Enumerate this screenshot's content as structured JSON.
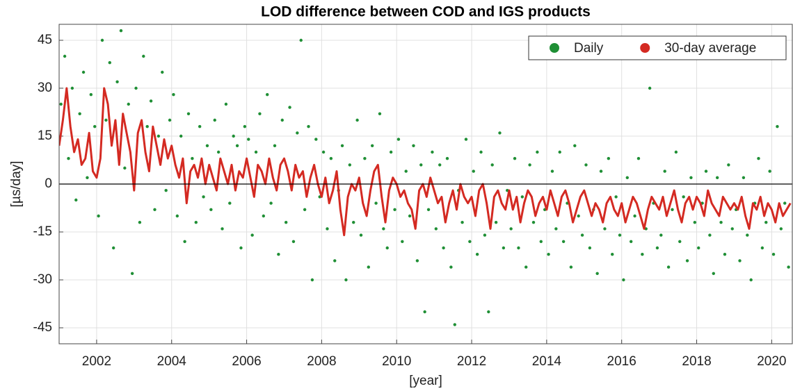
{
  "chart_data": {
    "type": "scatter",
    "title": "LOD difference between COD and IGS products",
    "x_label": "[year]",
    "y_label": "[µs/day]",
    "xlim": [
      2001,
      2020.55
    ],
    "xticks": [
      2002,
      2004,
      2006,
      2008,
      2010,
      2012,
      2014,
      2016,
      2018,
      2020
    ],
    "ylim": [
      -50,
      50
    ],
    "yticks": [
      -45,
      -30,
      -15,
      0,
      15,
      30,
      45
    ],
    "grid": true,
    "zero_line": true,
    "legend": "top-right",
    "series": [
      {
        "name": "Daily",
        "color": "#1f8f35",
        "style": "dots",
        "x": [
          2001.05,
          2001.15,
          2001.25,
          2001.35,
          2001.45,
          2001.55,
          2001.65,
          2001.75,
          2001.85,
          2001.95,
          2002.05,
          2002.15,
          2002.25,
          2002.35,
          2002.45,
          2002.55,
          2002.65,
          2002.75,
          2002.85,
          2002.95,
          2003.05,
          2003.15,
          2003.25,
          2003.35,
          2003.45,
          2003.55,
          2003.65,
          2003.75,
          2003.85,
          2003.95,
          2004.05,
          2004.15,
          2004.25,
          2004.35,
          2004.45,
          2004.55,
          2004.65,
          2004.75,
          2004.85,
          2004.95,
          2005.05,
          2005.15,
          2005.25,
          2005.35,
          2005.45,
          2005.55,
          2005.65,
          2005.75,
          2005.85,
          2005.95,
          2006.05,
          2006.15,
          2006.25,
          2006.35,
          2006.45,
          2006.55,
          2006.65,
          2006.75,
          2006.85,
          2006.95,
          2007.05,
          2007.15,
          2007.25,
          2007.35,
          2007.45,
          2007.55,
          2007.65,
          2007.75,
          2007.85,
          2007.95,
          2008.05,
          2008.15,
          2008.25,
          2008.35,
          2008.45,
          2008.55,
          2008.65,
          2008.75,
          2008.85,
          2008.95,
          2009.05,
          2009.15,
          2009.25,
          2009.35,
          2009.45,
          2009.55,
          2009.65,
          2009.75,
          2009.85,
          2009.95,
          2010.05,
          2010.15,
          2010.25,
          2010.35,
          2010.45,
          2010.55,
          2010.65,
          2010.75,
          2010.85,
          2010.95,
          2011.05,
          2011.15,
          2011.25,
          2011.35,
          2011.45,
          2011.55,
          2011.65,
          2011.75,
          2011.85,
          2011.95,
          2012.05,
          2012.15,
          2012.25,
          2012.35,
          2012.45,
          2012.55,
          2012.65,
          2012.75,
          2012.85,
          2012.95,
          2013.05,
          2013.15,
          2013.25,
          2013.35,
          2013.45,
          2013.55,
          2013.65,
          2013.75,
          2013.85,
          2013.95,
          2014.05,
          2014.15,
          2014.25,
          2014.35,
          2014.45,
          2014.55,
          2014.65,
          2014.75,
          2014.85,
          2014.95,
          2015.05,
          2015.15,
          2015.25,
          2015.35,
          2015.45,
          2015.55,
          2015.65,
          2015.75,
          2015.85,
          2015.95,
          2016.05,
          2016.15,
          2016.25,
          2016.35,
          2016.45,
          2016.55,
          2016.65,
          2016.75,
          2016.85,
          2016.95,
          2017.05,
          2017.15,
          2017.25,
          2017.35,
          2017.45,
          2017.55,
          2017.65,
          2017.75,
          2017.85,
          2017.95,
          2018.05,
          2018.15,
          2018.25,
          2018.35,
          2018.45,
          2018.55,
          2018.65,
          2018.75,
          2018.85,
          2018.95,
          2019.05,
          2019.15,
          2019.25,
          2019.35,
          2019.45,
          2019.55,
          2019.65,
          2019.75,
          2019.85,
          2019.95,
          2020.05,
          2020.15,
          2020.25,
          2020.35,
          2020.45
        ],
        "values": [
          25,
          40,
          8,
          30,
          -5,
          22,
          35,
          2,
          28,
          18,
          -10,
          45,
          20,
          38,
          -20,
          32,
          48,
          5,
          25,
          -28,
          30,
          -12,
          40,
          18,
          26,
          -8,
          15,
          35,
          -2,
          20,
          28,
          -10,
          15,
          -18,
          22,
          8,
          -12,
          18,
          -4,
          12,
          -8,
          20,
          10,
          -14,
          25,
          -6,
          15,
          12,
          -20,
          18,
          14,
          -16,
          10,
          22,
          -10,
          28,
          -6,
          12,
          -22,
          20,
          -12,
          24,
          -18,
          16,
          45,
          -8,
          18,
          -30,
          14,
          -4,
          10,
          -14,
          8,
          -24,
          -2,
          12,
          -30,
          6,
          -12,
          20,
          -16,
          8,
          -26,
          12,
          -6,
          22,
          -14,
          -20,
          10,
          -8,
          14,
          -18,
          4,
          -10,
          12,
          -24,
          6,
          -40,
          -8,
          10,
          -14,
          6,
          -20,
          8,
          -26,
          -44,
          -2,
          -12,
          14,
          -18,
          4,
          -22,
          10,
          -16,
          -40,
          6,
          -12,
          16,
          -20,
          -2,
          -14,
          8,
          -20,
          -4,
          -26,
          6,
          -12,
          10,
          -18,
          -8,
          -22,
          4,
          -14,
          10,
          -18,
          -6,
          -26,
          12,
          -10,
          -16,
          6,
          -20,
          -8,
          -28,
          4,
          -14,
          8,
          -22,
          -4,
          -16,
          -30,
          2,
          -18,
          -10,
          8,
          -22,
          -14,
          30,
          -6,
          -20,
          -16,
          4,
          -26,
          -8,
          10,
          -18,
          -4,
          -24,
          2,
          -12,
          -20,
          -6,
          4,
          -16,
          -28,
          2,
          -12,
          -22,
          6,
          -14,
          -8,
          -24,
          2,
          -16,
          -30,
          -6,
          8,
          -20,
          -12,
          4,
          -22,
          18,
          -14,
          -6,
          -26
        ]
      },
      {
        "name": "30-day average",
        "color": "#d42a22",
        "style": "line",
        "x": [
          2001.0,
          2001.1,
          2001.2,
          2001.3,
          2001.4,
          2001.5,
          2001.6,
          2001.7,
          2001.8,
          2001.9,
          2002.0,
          2002.1,
          2002.2,
          2002.3,
          2002.4,
          2002.5,
          2002.6,
          2002.7,
          2002.8,
          2002.9,
          2003.0,
          2003.1,
          2003.2,
          2003.3,
          2003.4,
          2003.5,
          2003.6,
          2003.7,
          2003.8,
          2003.9,
          2004.0,
          2004.1,
          2004.2,
          2004.3,
          2004.4,
          2004.5,
          2004.6,
          2004.7,
          2004.8,
          2004.9,
          2005.0,
          2005.1,
          2005.2,
          2005.3,
          2005.4,
          2005.5,
          2005.6,
          2005.7,
          2005.8,
          2005.9,
          2006.0,
          2006.1,
          2006.2,
          2006.3,
          2006.4,
          2006.5,
          2006.6,
          2006.7,
          2006.8,
          2006.9,
          2007.0,
          2007.1,
          2007.2,
          2007.3,
          2007.4,
          2007.5,
          2007.6,
          2007.7,
          2007.8,
          2007.9,
          2008.0,
          2008.1,
          2008.2,
          2008.3,
          2008.4,
          2008.5,
          2008.6,
          2008.7,
          2008.8,
          2008.9,
          2009.0,
          2009.1,
          2009.2,
          2009.3,
          2009.4,
          2009.5,
          2009.6,
          2009.7,
          2009.8,
          2009.9,
          2010.0,
          2010.1,
          2010.2,
          2010.3,
          2010.4,
          2010.5,
          2010.6,
          2010.7,
          2010.8,
          2010.9,
          2011.0,
          2011.1,
          2011.2,
          2011.3,
          2011.4,
          2011.5,
          2011.6,
          2011.7,
          2011.8,
          2011.9,
          2012.0,
          2012.1,
          2012.2,
          2012.3,
          2012.4,
          2012.5,
          2012.6,
          2012.7,
          2012.8,
          2012.9,
          2013.0,
          2013.1,
          2013.2,
          2013.3,
          2013.4,
          2013.5,
          2013.6,
          2013.7,
          2013.8,
          2013.9,
          2014.0,
          2014.1,
          2014.2,
          2014.3,
          2014.4,
          2014.5,
          2014.6,
          2014.7,
          2014.8,
          2014.9,
          2015.0,
          2015.1,
          2015.2,
          2015.3,
          2015.4,
          2015.5,
          2015.6,
          2015.7,
          2015.8,
          2015.9,
          2016.0,
          2016.1,
          2016.2,
          2016.3,
          2016.4,
          2016.5,
          2016.6,
          2016.7,
          2016.8,
          2016.9,
          2017.0,
          2017.1,
          2017.2,
          2017.3,
          2017.4,
          2017.5,
          2017.6,
          2017.7,
          2017.8,
          2017.9,
          2018.0,
          2018.1,
          2018.2,
          2018.3,
          2018.4,
          2018.5,
          2018.6,
          2018.7,
          2018.8,
          2018.9,
          2019.0,
          2019.1,
          2019.2,
          2019.3,
          2019.4,
          2019.5,
          2019.6,
          2019.7,
          2019.8,
          2019.9,
          2020.0,
          2020.1,
          2020.2,
          2020.3,
          2020.4,
          2020.5
        ],
        "values": [
          12,
          20,
          30,
          18,
          10,
          14,
          6,
          8,
          16,
          4,
          2,
          8,
          30,
          25,
          12,
          20,
          6,
          22,
          16,
          10,
          -2,
          16,
          20,
          10,
          4,
          18,
          12,
          6,
          14,
          8,
          12,
          6,
          2,
          8,
          -6,
          4,
          6,
          2,
          8,
          0,
          6,
          2,
          -2,
          8,
          4,
          0,
          6,
          -2,
          4,
          2,
          8,
          2,
          -4,
          6,
          4,
          0,
          8,
          2,
          -2,
          6,
          8,
          4,
          -2,
          6,
          2,
          4,
          -4,
          2,
          6,
          0,
          -4,
          2,
          -6,
          -2,
          4,
          -8,
          -16,
          -4,
          0,
          -2,
          2,
          -6,
          -10,
          -2,
          4,
          6,
          -4,
          -12,
          -2,
          2,
          0,
          -4,
          -2,
          -6,
          -8,
          -14,
          -2,
          0,
          -4,
          2,
          -2,
          -6,
          -4,
          -12,
          -6,
          -2,
          -8,
          0,
          -4,
          -6,
          -4,
          -10,
          -2,
          0,
          -6,
          -14,
          -4,
          -2,
          -6,
          -8,
          -2,
          -8,
          -4,
          -12,
          -6,
          -2,
          -4,
          -10,
          -6,
          -4,
          -8,
          -2,
          -6,
          -10,
          -4,
          -2,
          -6,
          -12,
          -8,
          -4,
          -2,
          -6,
          -10,
          -6,
          -8,
          -12,
          -6,
          -4,
          -8,
          -10,
          -6,
          -12,
          -8,
          -4,
          -6,
          -10,
          -14,
          -8,
          -4,
          -6,
          -8,
          -4,
          -10,
          -6,
          -2,
          -8,
          -12,
          -6,
          -4,
          -8,
          -4,
          -6,
          -10,
          -2,
          -6,
          -8,
          -10,
          -4,
          -6,
          -8,
          -6,
          -8,
          -4,
          -10,
          -14,
          -6,
          -8,
          -4,
          -10,
          -6,
          -8,
          -12,
          -6,
          -10,
          -8,
          -6
        ]
      }
    ]
  }
}
